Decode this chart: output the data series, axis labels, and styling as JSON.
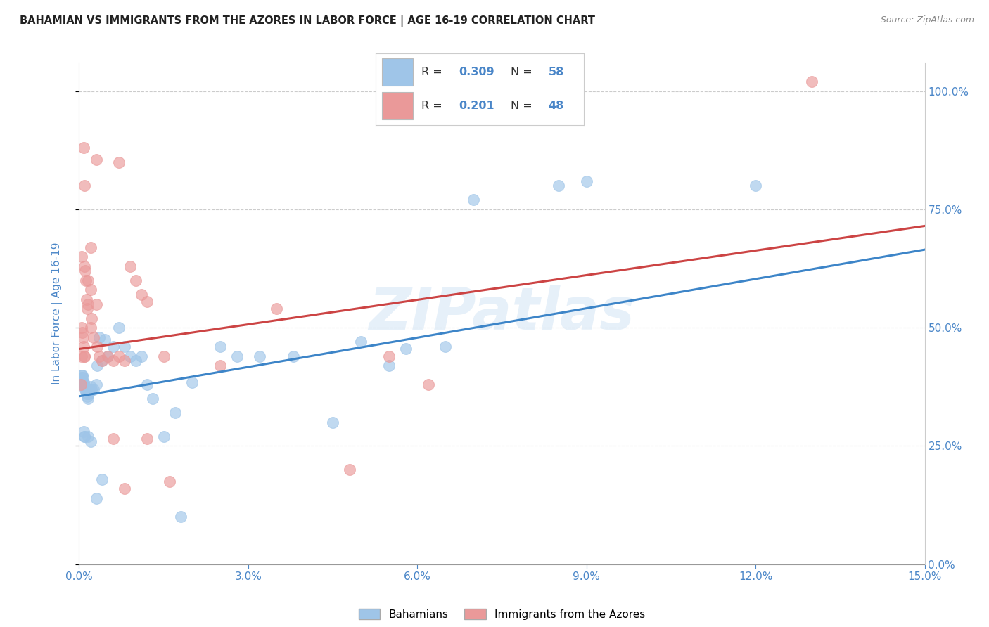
{
  "title": "BAHAMIAN VS IMMIGRANTS FROM THE AZORES IN LABOR FORCE | AGE 16-19 CORRELATION CHART",
  "source": "Source: ZipAtlas.com",
  "ylabel": "In Labor Force | Age 16-19",
  "xlim": [
    0.0,
    0.15
  ],
  "ylim": [
    0.0,
    1.06
  ],
  "xticks": [
    0.0,
    0.03,
    0.06,
    0.09,
    0.12,
    0.15
  ],
  "xticklabels": [
    "0.0%",
    "3.0%",
    "6.0%",
    "9.0%",
    "12.0%",
    "15.0%"
  ],
  "yticks": [
    0.0,
    0.25,
    0.5,
    0.75,
    1.0
  ],
  "yticklabels_right": [
    "0.0%",
    "25.0%",
    "50.0%",
    "75.0%",
    "100.0%"
  ],
  "blue_color": "#9fc5e8",
  "pink_color": "#ea9999",
  "blue_line_color": "#3d85c8",
  "pink_line_color": "#cc4444",
  "label_blue": "Bahamians",
  "label_pink": "Immigrants from the Azores",
  "watermark": "ZIPatlas",
  "title_color": "#222222",
  "axis_color": "#4a86c8",
  "grid_color": "#cccccc",
  "blue_r": "0.309",
  "blue_n": "58",
  "pink_r": "0.201",
  "pink_n": "48",
  "blue_trend_x": [
    0.0,
    0.15
  ],
  "blue_trend_y": [
    0.355,
    0.665
  ],
  "pink_trend_x": [
    0.0,
    0.15
  ],
  "pink_trend_y": [
    0.455,
    0.715
  ],
  "blue_x": [
    0.0002,
    0.0003,
    0.0004,
    0.0005,
    0.0006,
    0.0007,
    0.0008,
    0.0009,
    0.001,
    0.0011,
    0.0012,
    0.0013,
    0.0014,
    0.0015,
    0.0016,
    0.0017,
    0.0018,
    0.002,
    0.0022,
    0.0025,
    0.003,
    0.0032,
    0.0035,
    0.004,
    0.0045,
    0.005,
    0.006,
    0.007,
    0.008,
    0.009,
    0.01,
    0.011,
    0.012,
    0.013,
    0.015,
    0.017,
    0.018,
    0.02,
    0.025,
    0.028,
    0.032,
    0.038,
    0.045,
    0.05,
    0.055,
    0.058,
    0.065,
    0.07,
    0.085,
    0.09,
    0.12,
    0.0008,
    0.0009,
    0.001,
    0.0015,
    0.002,
    0.003,
    0.004
  ],
  "blue_y": [
    0.385,
    0.39,
    0.395,
    0.4,
    0.4,
    0.395,
    0.385,
    0.38,
    0.375,
    0.37,
    0.365,
    0.36,
    0.355,
    0.35,
    0.36,
    0.36,
    0.37,
    0.375,
    0.37,
    0.37,
    0.38,
    0.42,
    0.48,
    0.43,
    0.475,
    0.44,
    0.46,
    0.5,
    0.46,
    0.44,
    0.43,
    0.44,
    0.38,
    0.35,
    0.27,
    0.32,
    0.1,
    0.385,
    0.46,
    0.44,
    0.44,
    0.44,
    0.3,
    0.47,
    0.42,
    0.455,
    0.46,
    0.77,
    0.8,
    0.81,
    0.8,
    0.28,
    0.27,
    0.27,
    0.27,
    0.26,
    0.14,
    0.18
  ],
  "pink_x": [
    0.0003,
    0.0004,
    0.0005,
    0.0006,
    0.0007,
    0.0008,
    0.0009,
    0.001,
    0.0011,
    0.0012,
    0.0013,
    0.0014,
    0.0015,
    0.0016,
    0.002,
    0.0022,
    0.0025,
    0.003,
    0.0032,
    0.0035,
    0.004,
    0.005,
    0.006,
    0.007,
    0.008,
    0.009,
    0.01,
    0.011,
    0.012,
    0.0008,
    0.001,
    0.002,
    0.003,
    0.007,
    0.025,
    0.035,
    0.048,
    0.055,
    0.062,
    0.13,
    0.006,
    0.012,
    0.015,
    0.008,
    0.016,
    0.0005,
    0.001,
    0.002
  ],
  "pink_y": [
    0.38,
    0.44,
    0.5,
    0.49,
    0.48,
    0.46,
    0.44,
    0.44,
    0.62,
    0.6,
    0.56,
    0.54,
    0.6,
    0.55,
    0.5,
    0.52,
    0.48,
    0.55,
    0.46,
    0.44,
    0.43,
    0.44,
    0.43,
    0.44,
    0.43,
    0.63,
    0.6,
    0.57,
    0.555,
    0.88,
    0.8,
    0.67,
    0.855,
    0.85,
    0.42,
    0.54,
    0.2,
    0.44,
    0.38,
    1.02,
    0.265,
    0.265,
    0.44,
    0.16,
    0.175,
    0.65,
    0.63,
    0.58
  ]
}
